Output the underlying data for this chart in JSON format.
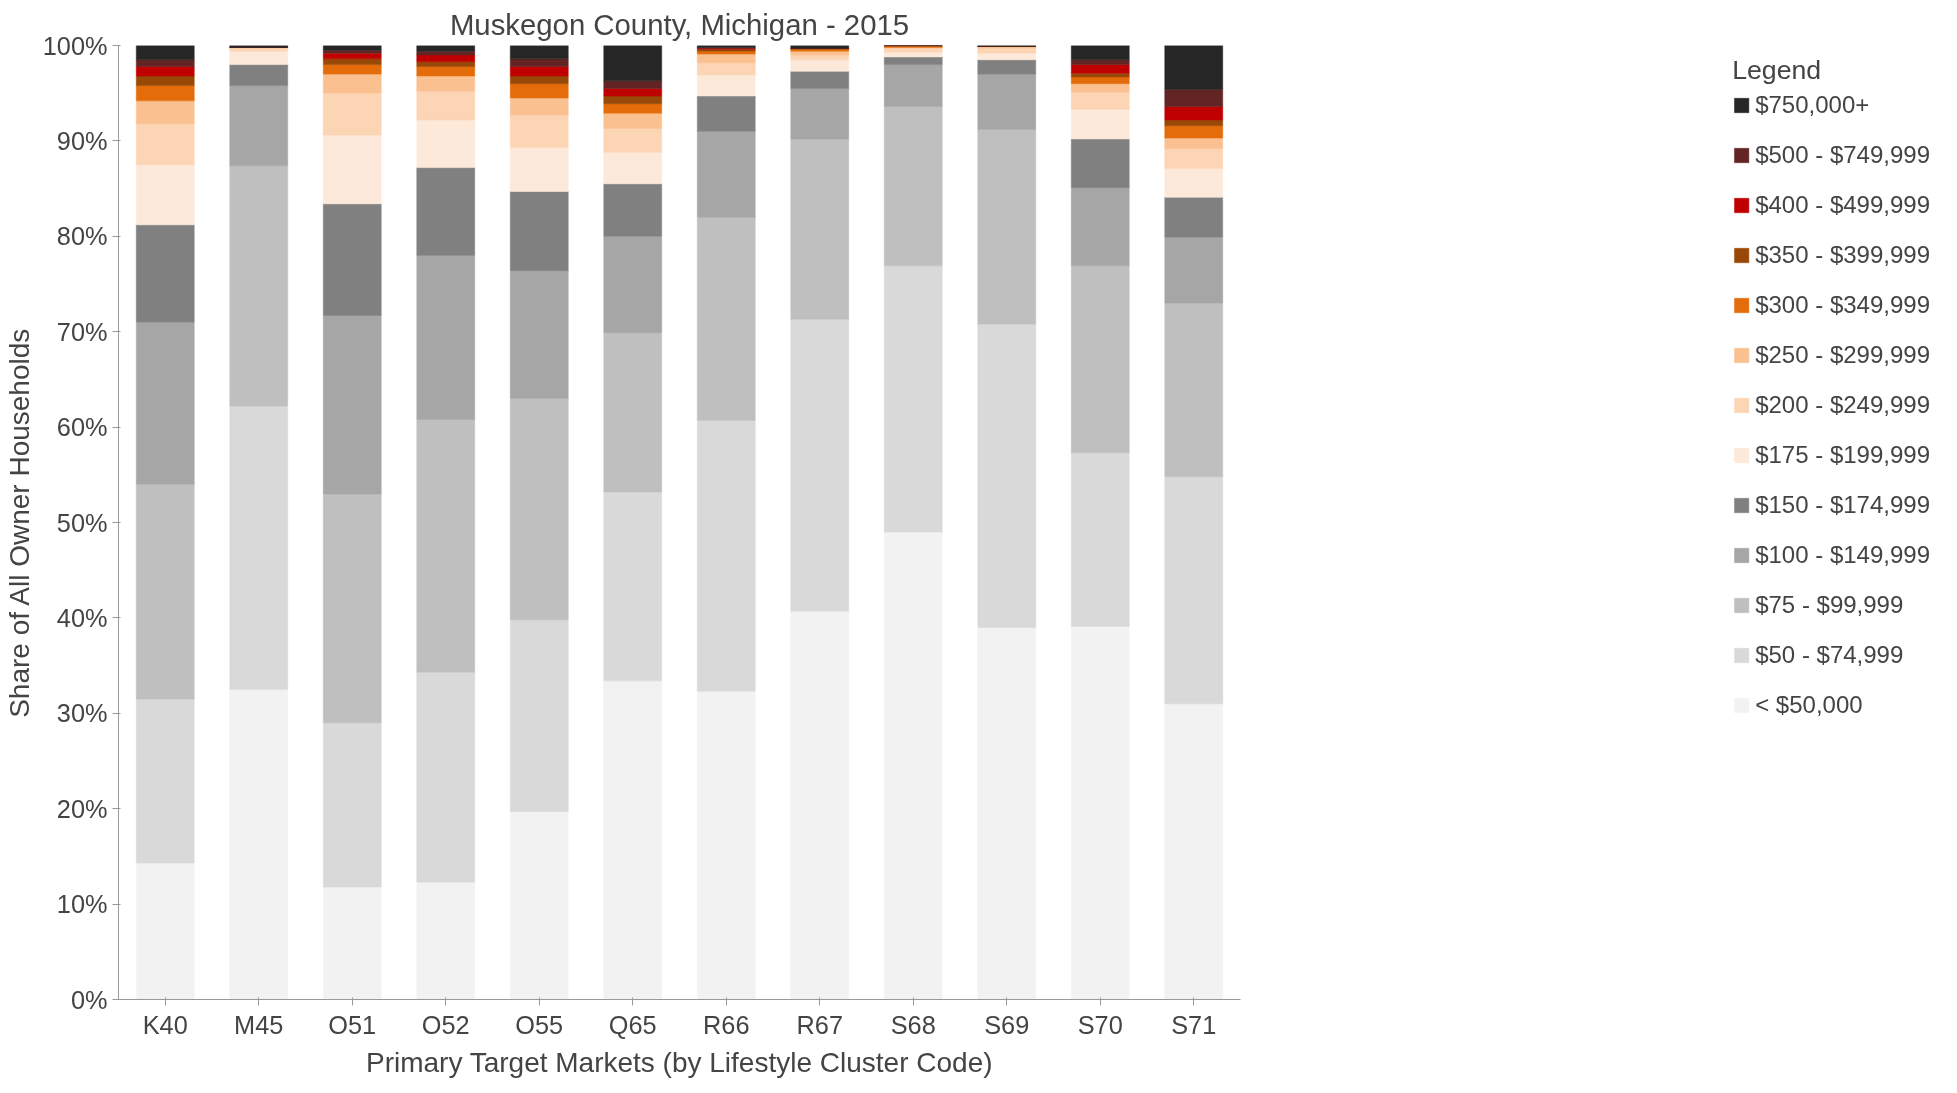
{
  "chart_data": {
    "type": "bar",
    "stacked": true,
    "title": "Muskegon County, Michigan - 2015",
    "xlabel": "Primary Target Markets (by Lifestyle Cluster Code)",
    "ylabel": "Share of All Owner Households",
    "legend_title": "Legend",
    "legend": "right",
    "grid": false,
    "categories": [
      "K40",
      "M45",
      "O51",
      "O52",
      "O55",
      "Q65",
      "R66",
      "R67",
      "S68",
      "S69",
      "S70",
      "S71"
    ],
    "ylim": [
      0,
      100
    ],
    "yticks": [
      {
        "value": 0,
        "label": "0%"
      },
      {
        "value": 10,
        "label": "10%"
      },
      {
        "value": 20,
        "label": "20%"
      },
      {
        "value": 30,
        "label": "30%"
      },
      {
        "value": 40,
        "label": "40%"
      },
      {
        "value": 50,
        "label": "50%"
      },
      {
        "value": 60,
        "label": "60%"
      },
      {
        "value": 70,
        "label": "70%"
      },
      {
        "value": 80,
        "label": "80%"
      },
      {
        "value": 90,
        "label": "90%"
      },
      {
        "value": 100,
        "label": "100%"
      }
    ],
    "series": [
      {
        "name": "< $50,000",
        "color": "#f2f2f2",
        "values": [
          14.3,
          32.5,
          11.8,
          12.3,
          19.7,
          33.4,
          32.3,
          40.7,
          49.0,
          39.0,
          39.1,
          31.0
        ]
      },
      {
        "name": "$50 - $74,999",
        "color": "#d9d9d9",
        "values": [
          17.2,
          29.7,
          17.2,
          22.0,
          20.1,
          19.8,
          28.4,
          30.6,
          27.9,
          31.8,
          18.2,
          23.8
        ]
      },
      {
        "name": "$75 - $99,999",
        "color": "#bfbfbf",
        "values": [
          22.5,
          25.2,
          24.0,
          26.5,
          23.2,
          16.7,
          21.3,
          18.9,
          16.7,
          20.4,
          19.6,
          18.2
        ]
      },
      {
        "name": "$100 - $149,999",
        "color": "#a6a6a6",
        "values": [
          17.0,
          8.4,
          18.7,
          17.2,
          13.4,
          10.1,
          9.0,
          5.3,
          4.4,
          5.8,
          8.2,
          6.9
        ]
      },
      {
        "name": "$150 - $174,999",
        "color": "#808080",
        "values": [
          10.2,
          2.2,
          11.7,
          9.2,
          8.3,
          5.5,
          3.7,
          1.8,
          0.8,
          1.5,
          5.1,
          4.2
        ]
      },
      {
        "name": "$175 - $199,999",
        "color": "#fde9d9",
        "values": [
          6.3,
          1.4,
          7.2,
          5.0,
          4.6,
          3.3,
          2.2,
          1.2,
          0.5,
          0.7,
          3.1,
          3.0
        ]
      },
      {
        "name": "$200 - $249,999",
        "color": "#fcd5b5",
        "values": [
          4.3,
          0.3,
          4.4,
          3.0,
          3.4,
          2.5,
          1.3,
          0.5,
          0.4,
          0.5,
          1.8,
          2.1
        ]
      },
      {
        "name": "$250 - $299,999",
        "color": "#fac090",
        "values": [
          2.4,
          0.1,
          2.0,
          1.6,
          1.8,
          1.6,
          0.9,
          0.4,
          0.1,
          0.2,
          0.9,
          1.1
        ]
      },
      {
        "name": "$300 - $349,999",
        "color": "#e46c0a",
        "values": [
          1.6,
          0,
          1.0,
          1.0,
          1.5,
          1.0,
          0.3,
          0.2,
          0.1,
          0,
          0.7,
          1.3
        ]
      },
      {
        "name": "$350 - $399,999",
        "color": "#984807",
        "values": [
          1.0,
          0,
          0.6,
          0.5,
          0.8,
          0.8,
          0.2,
          0.1,
          0.1,
          0,
          0.4,
          0.6
        ]
      },
      {
        "name": "$400 - $499,999",
        "color": "#c00000",
        "values": [
          1.0,
          0,
          0.6,
          0.7,
          1.0,
          0.8,
          0.1,
          0,
          0,
          0,
          0.9,
          1.4
        ]
      },
      {
        "name": "$500 - $749,999",
        "color": "#632523",
        "values": [
          0.7,
          0,
          0.3,
          0.4,
          0.8,
          0.8,
          0.1,
          0,
          0,
          0,
          0.5,
          1.8
        ]
      },
      {
        "name": "$750,000+",
        "color": "#262626",
        "values": [
          1.5,
          0.2,
          0.5,
          0.6,
          1.4,
          3.7,
          0.2,
          0.3,
          0.1,
          0.1,
          1.5,
          4.6
        ]
      }
    ]
  }
}
